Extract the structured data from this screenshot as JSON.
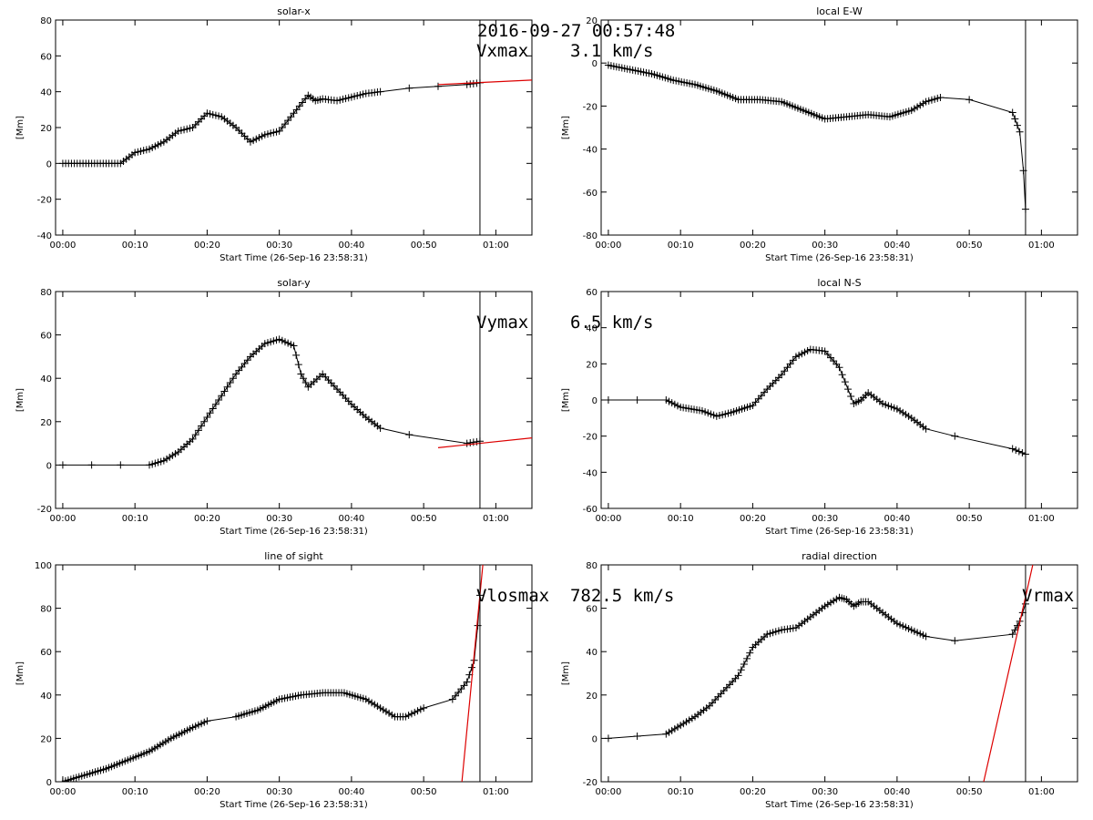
{
  "figure": {
    "timestamp": "2016-09-27 00:57:48",
    "x_axis": {
      "label": "Start Time (26-Sep-16 23:58:31)",
      "ticks": [
        "00:00",
        "00:10",
        "00:20",
        "00:30",
        "00:40",
        "00:50",
        "01:00"
      ],
      "tick_minutes": [
        0,
        10,
        20,
        30,
        40,
        50,
        60
      ],
      "range_minutes": [
        -1.0,
        65.0
      ],
      "start_offset_minutes": 1.4833
    },
    "marker_time_minutes": 57.8,
    "colors": {
      "data": "#000000",
      "fit": "#dd0000",
      "marker": "#000000"
    }
  },
  "chart_data": [
    {
      "type": "line",
      "title": "solar-x",
      "ylabel": "[Mm]",
      "ylim": [
        -40,
        80
      ],
      "yticks": [
        -40,
        -20,
        0,
        20,
        40,
        60,
        80
      ],
      "annotation": "Vxmax    3.1 km/s",
      "grid": false,
      "series": [
        {
          "x": [
            0,
            2,
            4,
            6,
            8,
            10,
            12,
            14,
            16,
            18,
            20,
            22,
            24,
            26,
            28,
            30,
            32,
            34,
            35,
            36,
            38,
            40,
            42,
            44,
            48,
            52,
            56,
            57.8
          ],
          "y": [
            0,
            0,
            0,
            0,
            0,
            6,
            8,
            12,
            18,
            20,
            28,
            26,
            20,
            12,
            16,
            18,
            28,
            38,
            35,
            36,
            35,
            37,
            39,
            40,
            42,
            43,
            44,
            45
          ]
        }
      ],
      "fit": {
        "x": [
          52,
          65
        ],
        "y": [
          44,
          46.5
        ]
      }
    },
    {
      "type": "line",
      "title": "local E-W",
      "ylabel": "[Mm]",
      "ylim": [
        -80,
        20
      ],
      "yticks": [
        -80,
        -60,
        -40,
        -20,
        0,
        20
      ],
      "annotation": "",
      "grid": false,
      "series": [
        {
          "x": [
            0,
            3,
            6,
            9,
            12,
            15,
            18,
            21,
            24,
            27,
            30,
            33,
            36,
            39,
            42,
            44,
            46,
            50,
            56,
            57,
            57.5,
            57.8
          ],
          "y": [
            -1,
            -3,
            -5,
            -8,
            -10,
            -13,
            -17,
            -17,
            -18,
            -22,
            -26,
            -25,
            -24,
            -25,
            -22,
            -18,
            -16,
            -17,
            -23,
            -32,
            -50,
            -68
          ]
        }
      ],
      "fit": null
    },
    {
      "type": "line",
      "title": "solar-y",
      "ylabel": "[Mm]",
      "ylim": [
        -20,
        80
      ],
      "yticks": [
        -20,
        0,
        20,
        40,
        60,
        80
      ],
      "annotation": "Vymax    6.5 km/s",
      "grid": false,
      "series": [
        {
          "x": [
            0,
            4,
            8,
            12,
            14,
            16,
            18,
            20,
            22,
            24,
            26,
            28,
            30,
            32,
            33,
            34,
            36,
            38,
            40,
            42,
            44,
            48,
            56,
            57.8
          ],
          "y": [
            0,
            0,
            0,
            0,
            2,
            6,
            12,
            22,
            32,
            42,
            50,
            56,
            58,
            55,
            42,
            36,
            42,
            35,
            28,
            22,
            17,
            14,
            10,
            11
          ]
        }
      ],
      "fit": {
        "x": [
          52,
          65
        ],
        "y": [
          8,
          12.5
        ]
      }
    },
    {
      "type": "line",
      "title": "local N-S",
      "ylabel": "[Mm]",
      "ylim": [
        -60,
        60
      ],
      "yticks": [
        -60,
        -40,
        -20,
        0,
        20,
        40,
        60
      ],
      "annotation": "",
      "grid": false,
      "series": [
        {
          "x": [
            0,
            4,
            8,
            10,
            13,
            15,
            17,
            20,
            22,
            24,
            26,
            28,
            30,
            32,
            34,
            35,
            36,
            38,
            40,
            42,
            44,
            48,
            56,
            57.8
          ],
          "y": [
            0,
            0,
            0,
            -4,
            -6,
            -9,
            -7,
            -3,
            6,
            14,
            24,
            28,
            27,
            18,
            -2,
            0,
            4,
            -2,
            -5,
            -10,
            -16,
            -20,
            -27,
            -30
          ]
        }
      ],
      "fit": null
    },
    {
      "type": "line",
      "title": "line of sight",
      "ylabel": "[Mm]",
      "ylim": [
        0,
        100
      ],
      "yticks": [
        0,
        20,
        40,
        60,
        80,
        100
      ],
      "annotation": "Vlosmax  782.5 km/s",
      "grid": false,
      "series": [
        {
          "x": [
            0,
            3,
            6,
            9,
            12,
            15,
            18,
            20,
            24,
            27,
            30,
            33,
            36,
            39,
            42,
            44,
            46,
            47.5,
            50,
            54,
            56,
            57,
            57.5,
            57.8
          ],
          "y": [
            0,
            3,
            6,
            10,
            14,
            20,
            25,
            28,
            30,
            33,
            38,
            40,
            41,
            41,
            38,
            34,
            30,
            30,
            34,
            38,
            46,
            56,
            72,
            86
          ]
        }
      ],
      "fit": {
        "x": [
          55.3,
          58.2
        ],
        "y": [
          0,
          100
        ]
      }
    },
    {
      "type": "line",
      "title": "radial direction",
      "ylabel": "[Mm]",
      "ylim": [
        -20,
        80
      ],
      "yticks": [
        -20,
        0,
        20,
        40,
        60,
        80
      ],
      "annotation": "Vrmax",
      "grid": false,
      "series": [
        {
          "x": [
            0,
            4,
            8,
            10,
            12,
            14,
            16,
            18,
            20,
            22,
            24,
            26,
            28,
            30,
            32,
            33,
            34,
            35,
            36,
            38,
            40,
            42,
            44,
            48,
            56,
            57,
            57.8
          ],
          "y": [
            0,
            1,
            2,
            6,
            10,
            15,
            22,
            29,
            42,
            48,
            50,
            51,
            56,
            61,
            65,
            64,
            61,
            63,
            63,
            58,
            53,
            50,
            47,
            45,
            48,
            54,
            62
          ]
        }
      ],
      "fit": {
        "x": [
          52,
          58.8
        ],
        "y": [
          -20,
          80
        ]
      }
    }
  ]
}
